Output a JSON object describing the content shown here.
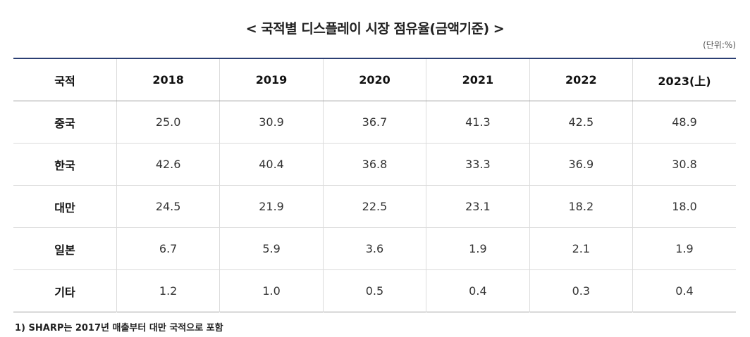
{
  "title": "< 국적별 디스플레이 시장 점유율(금액기준) >",
  "unit": "(단위:%)",
  "table": {
    "corner_header": "국적",
    "years": [
      "2018",
      "2019",
      "2020",
      "2021",
      "2022",
      "2023(上)"
    ],
    "rows": [
      {
        "country": "중국",
        "values": [
          "25.0",
          "30.9",
          "36.7",
          "41.3",
          "42.5",
          "48.9"
        ]
      },
      {
        "country": "한국",
        "values": [
          "42.6",
          "40.4",
          "36.8",
          "33.3",
          "36.9",
          "30.8"
        ]
      },
      {
        "country": "대만",
        "values": [
          "24.5",
          "21.9",
          "22.5",
          "23.1",
          "18.2",
          "18.0"
        ]
      },
      {
        "country": "일본",
        "values": [
          "6.7",
          "5.9",
          "3.6",
          "1.9",
          "2.1",
          "1.9"
        ]
      },
      {
        "country": "기타",
        "values": [
          "1.2",
          "1.0",
          "0.5",
          "0.4",
          "0.3",
          "0.4"
        ]
      }
    ]
  },
  "footnote": "1) SHARP는 2017년 매출부터 대만 국적으로 포함",
  "colors": {
    "header_rule": "#2b3f73",
    "grid": "#dcdcdc"
  }
}
